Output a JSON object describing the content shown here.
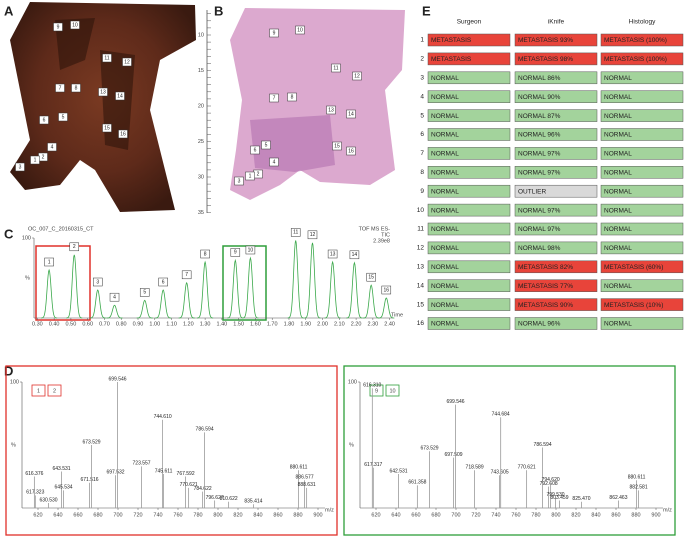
{
  "panels": [
    "A",
    "B",
    "C",
    "D",
    "E"
  ],
  "image_a": {
    "labels": [
      "9",
      "10",
      "11",
      "12",
      "7",
      "8",
      "13",
      "14",
      "6",
      "5",
      "15",
      "16",
      "4",
      "2",
      "1",
      "3"
    ]
  },
  "image_b": {
    "labels": [
      "9",
      "10",
      "11",
      "12",
      "7",
      "8",
      "13",
      "14",
      "5",
      "6",
      "15",
      "16",
      "4",
      "2",
      "1",
      "3"
    ],
    "ruler": [
      10,
      15,
      20,
      25,
      30,
      35
    ]
  },
  "table": {
    "header": [
      "Surgeon",
      "iKnife",
      "Histology"
    ],
    "rows": [
      {
        "num": "1",
        "cells": [
          "METASTASIS",
          "METASTASIS 93%",
          "METASTASIS (100%)"
        ],
        "fills": [
          "#e8443a",
          "#e8443a",
          "#e8443a"
        ]
      },
      {
        "num": "2",
        "cells": [
          "METASTASIS",
          "METASTASIS 98%",
          "METASTASIS (100%)"
        ],
        "fills": [
          "#e8443a",
          "#e8443a",
          "#e8443a"
        ]
      },
      {
        "num": "3",
        "cells": [
          "NORMAL",
          "NORMAL 86%",
          "NORMAL"
        ],
        "fills": [
          "#a3d39c",
          "#a3d39c",
          "#a3d39c"
        ]
      },
      {
        "num": "4",
        "cells": [
          "NORMAL",
          "NORMAL 90%",
          "NORMAL"
        ],
        "fills": [
          "#a3d39c",
          "#a3d39c",
          "#a3d39c"
        ]
      },
      {
        "num": "5",
        "cells": [
          "NORMAL",
          "NORMAL 87%",
          "NORMAL"
        ],
        "fills": [
          "#a3d39c",
          "#a3d39c",
          "#a3d39c"
        ]
      },
      {
        "num": "6",
        "cells": [
          "NORMAL",
          "NORMAL 96%",
          "NORMAL"
        ],
        "fills": [
          "#a3d39c",
          "#a3d39c",
          "#a3d39c"
        ]
      },
      {
        "num": "7",
        "cells": [
          "NORMAL",
          "NORMAL 97%",
          "NORMAL"
        ],
        "fills": [
          "#a3d39c",
          "#a3d39c",
          "#a3d39c"
        ]
      },
      {
        "num": "8",
        "cells": [
          "NORMAL",
          "NORMAL 97%",
          "NORMAL"
        ],
        "fills": [
          "#a3d39c",
          "#a3d39c",
          "#a3d39c"
        ]
      },
      {
        "num": "9",
        "cells": [
          "NORMAL",
          "OUTLIER",
          "NORMAL"
        ],
        "fills": [
          "#a3d39c",
          "#d9d9d9",
          "#a3d39c"
        ]
      },
      {
        "num": "10",
        "cells": [
          "NORMAL",
          "NORMAL 97%",
          "NORMAL"
        ],
        "fills": [
          "#a3d39c",
          "#a3d39c",
          "#a3d39c"
        ]
      },
      {
        "num": "11",
        "cells": [
          "NORMAL",
          "NORMAL 97%",
          "NORMAL"
        ],
        "fills": [
          "#a3d39c",
          "#a3d39c",
          "#a3d39c"
        ]
      },
      {
        "num": "12",
        "cells": [
          "NORMAL",
          "NORMAL 98%",
          "NORMAL"
        ],
        "fills": [
          "#a3d39c",
          "#a3d39c",
          "#a3d39c"
        ]
      },
      {
        "num": "13",
        "cells": [
          "NORMAL",
          "METASTASIS 82%",
          "METASTASIS (60%)"
        ],
        "fills": [
          "#a3d39c",
          "#e8443a",
          "#e8443a"
        ]
      },
      {
        "num": "14",
        "cells": [
          "NORMAL",
          "METASTASIS 77%",
          "NORMAL"
        ],
        "fills": [
          "#a3d39c",
          "#e8443a",
          "#a3d39c"
        ]
      },
      {
        "num": "15",
        "cells": [
          "NORMAL",
          "METASTASIS 90%",
          "METASTASIS (10%)"
        ],
        "fills": [
          "#a3d39c",
          "#e8443a",
          "#e8443a"
        ]
      },
      {
        "num": "16",
        "cells": [
          "NORMAL",
          "NORMAL 96%",
          "NORMAL"
        ],
        "fills": [
          "#a3d39c",
          "#a3d39c",
          "#a3d39c"
        ]
      }
    ]
  },
  "chart_data": [
    {
      "type": "chromatogram",
      "title": "OC_007_C_20160315_CT",
      "annotations": [
        "TOF MS ES-",
        "TIC",
        "2.39e8"
      ],
      "xlabel": "Time",
      "ylabel": "%",
      "xlim": [
        0.28,
        2.42
      ],
      "ylim": [
        0,
        100
      ],
      "xticks": [
        {
          "value": 0.3,
          "label": "0.30"
        },
        {
          "value": 0.4,
          "label": "0.40"
        },
        {
          "value": 0.5,
          "label": "0.50"
        },
        {
          "value": 0.6,
          "label": "0.60"
        },
        {
          "value": 0.7,
          "label": "0.70"
        },
        {
          "value": 0.8,
          "label": "0.80"
        },
        {
          "value": 0.9,
          "label": "0.90"
        },
        {
          "value": 1.0,
          "label": "1.00"
        },
        {
          "value": 1.1,
          "label": "1.10"
        },
        {
          "value": 1.2,
          "label": "1.20"
        },
        {
          "value": 1.3,
          "label": "1.30"
        },
        {
          "value": 1.4,
          "label": "1.40"
        },
        {
          "value": 1.5,
          "label": "1.50"
        },
        {
          "value": 1.6,
          "label": "1.60"
        },
        {
          "value": 1.7,
          "label": "1.70"
        },
        {
          "value": 1.8,
          "label": "1.80"
        },
        {
          "value": 1.9,
          "label": "1.90"
        },
        {
          "value": 2.0,
          "label": "2.00"
        },
        {
          "value": 2.1,
          "label": "2.10"
        },
        {
          "value": 2.2,
          "label": "2.20"
        },
        {
          "value": 2.3,
          "label": "2.30"
        },
        {
          "value": 2.4,
          "label": "2.40"
        }
      ],
      "yticks": [
        100
      ],
      "x": [
        0.37,
        0.52,
        0.66,
        0.76,
        0.94,
        1.05,
        1.19,
        1.3,
        1.48,
        1.57,
        1.84,
        1.94,
        2.06,
        2.19,
        2.29,
        2.38
      ],
      "values": [
        60,
        79,
        35,
        16,
        22,
        35,
        44,
        70,
        72,
        75,
        97,
        94,
        70,
        69,
        41,
        25
      ],
      "peak_labels": [
        "1",
        "2",
        "3",
        "4",
        "5",
        "6",
        "7",
        "8",
        "9",
        "10",
        "11",
        "12",
        "13",
        "14",
        "15",
        "16"
      ],
      "color": "#3aa84a"
    },
    {
      "type": "spectrum",
      "tags": [
        "1",
        "2"
      ],
      "xlabel": "m/z",
      "ylabel": "%",
      "xlim": [
        604,
        907
      ],
      "ylim": [
        0,
        100
      ],
      "xticks": [
        620,
        640,
        660,
        680,
        700,
        720,
        740,
        760,
        780,
        800,
        820,
        840,
        860,
        880,
        900
      ],
      "yticks": [
        100
      ],
      "x": [
        616.376,
        617.323,
        630.53,
        643.531,
        645.534,
        671.516,
        673.529,
        697.532,
        699.546,
        723.557,
        744.61,
        745.611,
        767.592,
        770.621,
        784.622,
        786.594,
        796.627,
        810.622,
        835.414,
        880.611,
        886.577,
        888.631
      ],
      "x_labels": [
        "616.376",
        "617.323",
        "630.530",
        "643.531",
        "645.534",
        "671.516",
        "673.529",
        "697.532",
        "699.546",
        "723.557",
        "744.610",
        "745.611",
        "767.592",
        "770.621",
        "784.622",
        "786.594",
        "796.627",
        "810.622",
        "835.414",
        "880.611",
        "886.577",
        "888.631"
      ],
      "values": [
        25,
        10,
        4,
        29,
        14,
        20,
        50,
        26,
        100,
        33,
        70,
        27,
        25,
        16,
        13,
        60,
        6,
        5,
        3,
        30,
        22,
        16
      ],
      "color": "#9a9a9a",
      "frame": "#e0302a"
    },
    {
      "type": "spectrum",
      "tags": [
        "9",
        "10"
      ],
      "xlabel": "m/z",
      "ylabel": "%",
      "xlim": [
        604,
        907
      ],
      "ylim": [
        0,
        100
      ],
      "xticks": [
        620,
        640,
        660,
        680,
        700,
        720,
        740,
        760,
        780,
        800,
        820,
        840,
        860,
        880,
        900
      ],
      "yticks": [
        100
      ],
      "x": [
        616.31,
        617.317,
        642.531,
        661.358,
        673.529,
        697.509,
        699.546,
        718.589,
        743.605,
        744.684,
        770.621,
        786.594,
        792.608,
        794.62,
        799.53,
        803.459,
        825.47,
        862.463,
        880.611,
        882.581
      ],
      "x_labels": [
        "616.310",
        "617.317",
        "642.531",
        "661.358",
        "673.529",
        "697.509",
        "699.546",
        "718.589",
        "743.605",
        "744.684",
        "770.621",
        "786.594",
        "792.608",
        "794.620",
        "799.530",
        "803.459",
        "825.470",
        "862.463",
        "880.611",
        "882.581"
      ],
      "values": [
        95,
        32,
        27,
        18,
        45,
        40,
        82,
        30,
        26,
        72,
        30,
        48,
        17,
        20,
        8,
        6,
        5,
        6,
        22,
        14
      ],
      "color": "#9a9a9a",
      "frame": "#2e9e3a"
    }
  ]
}
